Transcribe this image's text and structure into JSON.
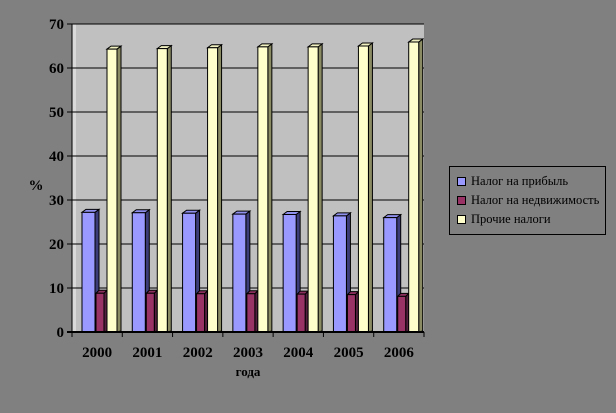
{
  "chart_data": {
    "type": "bar",
    "title": "",
    "xlabel": "года",
    "ylabel": "%",
    "categories": [
      "2000",
      "2001",
      "2002",
      "2003",
      "2004",
      "2005",
      "2006"
    ],
    "series": [
      {
        "name": "Налог на прибыль",
        "color": "#9999FF",
        "side_color": "#3C3C78",
        "top_color": "#8F8FEE",
        "values": [
          27.2,
          27.1,
          27.0,
          26.8,
          26.7,
          26.4,
          26.0
        ]
      },
      {
        "name": "Налог на недвижимость",
        "color": "#993366",
        "side_color": "#55203F",
        "top_color": "#8A2E5C",
        "values": [
          8.8,
          8.8,
          8.7,
          8.7,
          8.6,
          8.5,
          8.1
        ]
      },
      {
        "name": "Прочие налоги",
        "color": "#FFFFCC",
        "side_color": "#8A8A63",
        "top_color": "#F0F0C0",
        "values": [
          64.3,
          64.4,
          64.6,
          64.8,
          64.8,
          65.0,
          65.9
        ]
      }
    ],
    "ylim": [
      0,
      70
    ],
    "yticks": [
      0,
      10,
      20,
      30,
      40,
      50,
      60,
      70
    ],
    "grid": true,
    "legend_position": "right",
    "colors": {
      "page_background": "#808080",
      "plot_background": "#C0C0C0",
      "wall_side": "#D9D9D9",
      "gridline": "#000000",
      "text": "#000000"
    }
  }
}
